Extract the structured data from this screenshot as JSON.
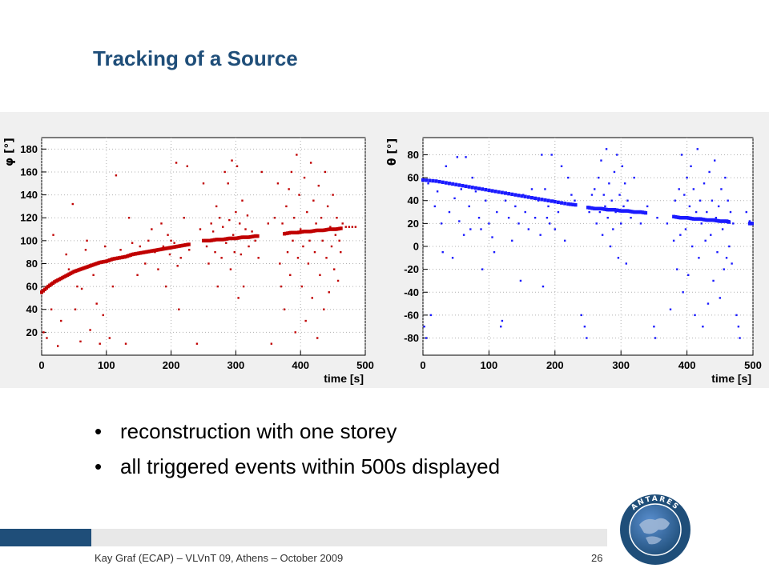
{
  "slide": {
    "title": "Tracking of a Source",
    "bullets": [
      "reconstruction with one storey",
      "all triggered events within 500s displayed"
    ],
    "footer": "Kay Graf (ECAP) – VLVnT 09, Athens – October 2009",
    "page_number": "26",
    "logo_text": "ANTARES",
    "colors": {
      "title": "#1f4e79",
      "footer_bar": "#1f4e79",
      "phi_series": "#c00000",
      "theta_series": "#1a1aff"
    }
  },
  "chart_data": [
    {
      "type": "scatter",
      "ylabel": "φ [°]",
      "xlabel": "time [s]",
      "xlim": [
        0,
        500
      ],
      "ylim": [
        0,
        190
      ],
      "xticks": [
        0,
        100,
        200,
        300,
        400,
        500
      ],
      "yticks": [
        20,
        40,
        60,
        80,
        100,
        120,
        140,
        160,
        180
      ],
      "grid": true,
      "color": "#c00000",
      "trend_segments": [
        {
          "x": [
            0,
            10,
            20,
            30,
            40,
            50,
            60,
            70,
            80,
            90,
            100,
            110,
            120,
            130,
            140,
            150,
            160,
            170,
            180,
            190,
            200,
            210,
            220,
            230
          ],
          "y": [
            55,
            60,
            64,
            67,
            70,
            73,
            75,
            77,
            79,
            81,
            82,
            84,
            85,
            86,
            88,
            89,
            90,
            91,
            92,
            93,
            94,
            95,
            96,
            97
          ]
        },
        {
          "x": [
            250,
            260,
            270,
            280,
            290,
            300,
            310,
            320,
            330,
            335
          ],
          "y": [
            100,
            100,
            101,
            101,
            102,
            102,
            103,
            103,
            104,
            104
          ]
        },
        {
          "x": [
            375,
            385,
            395,
            405,
            415,
            425,
            435,
            445,
            455,
            465
          ],
          "y": [
            106,
            107,
            107,
            108,
            108,
            109,
            109,
            110,
            110,
            111
          ]
        }
      ],
      "scatter_points": [
        [
          3,
          20
        ],
        [
          8,
          15
        ],
        [
          15,
          40
        ],
        [
          18,
          105
        ],
        [
          25,
          8
        ],
        [
          30,
          30
        ],
        [
          38,
          88
        ],
        [
          42,
          75
        ],
        [
          48,
          132
        ],
        [
          52,
          40
        ],
        [
          55,
          60
        ],
        [
          60,
          12
        ],
        [
          62,
          58
        ],
        [
          68,
          92
        ],
        [
          70,
          100
        ],
        [
          75,
          22
        ],
        [
          80,
          70
        ],
        [
          85,
          45
        ],
        [
          90,
          10
        ],
        [
          95,
          35
        ],
        [
          98,
          95
        ],
        [
          105,
          15
        ],
        [
          110,
          60
        ],
        [
          115,
          157
        ],
        [
          122,
          92
        ],
        [
          130,
          10
        ],
        [
          135,
          120
        ],
        [
          140,
          98
        ],
        [
          148,
          70
        ],
        [
          152,
          95
        ],
        [
          160,
          80
        ],
        [
          165,
          100
        ],
        [
          170,
          110
        ],
        [
          175,
          90
        ],
        [
          180,
          75
        ],
        [
          185,
          115
        ],
        [
          188,
          95
        ],
        [
          192,
          60
        ],
        [
          195,
          105
        ],
        [
          198,
          88
        ],
        [
          200,
          100
        ],
        [
          205,
          98
        ],
        [
          208,
          168
        ],
        [
          210,
          78
        ],
        [
          212,
          40
        ],
        [
          215,
          85
        ],
        [
          220,
          120
        ],
        [
          225,
          165
        ],
        [
          228,
          92
        ],
        [
          240,
          10
        ],
        [
          245,
          110
        ],
        [
          250,
          150
        ],
        [
          255,
          95
        ],
        [
          258,
          80
        ],
        [
          262,
          115
        ],
        [
          265,
          108
        ],
        [
          268,
          90
        ],
        [
          270,
          130
        ],
        [
          272,
          60
        ],
        [
          275,
          120
        ],
        [
          278,
          85
        ],
        [
          280,
          112
        ],
        [
          283,
          160
        ],
        [
          285,
          98
        ],
        [
          288,
          150
        ],
        [
          290,
          118
        ],
        [
          292,
          75
        ],
        [
          294,
          170
        ],
        [
          296,
          105
        ],
        [
          298,
          90
        ],
        [
          300,
          125
        ],
        [
          302,
          165
        ],
        [
          304,
          50
        ],
        [
          306,
          115
        ],
        [
          308,
          88
        ],
        [
          310,
          135
        ],
        [
          312,
          60
        ],
        [
          315,
          110
        ],
        [
          318,
          122
        ],
        [
          320,
          95
        ],
        [
          325,
          108
        ],
        [
          330,
          100
        ],
        [
          335,
          85
        ],
        [
          340,
          160
        ],
        [
          350,
          115
        ],
        [
          355,
          10
        ],
        [
          360,
          120
        ],
        [
          365,
          150
        ],
        [
          368,
          80
        ],
        [
          370,
          60
        ],
        [
          372,
          115
        ],
        [
          375,
          40
        ],
        [
          378,
          130
        ],
        [
          380,
          90
        ],
        [
          382,
          145
        ],
        [
          384,
          70
        ],
        [
          386,
          160
        ],
        [
          388,
          100
        ],
        [
          390,
          120
        ],
        [
          392,
          20
        ],
        [
          394,
          175
        ],
        [
          396,
          85
        ],
        [
          398,
          140
        ],
        [
          400,
          110
        ],
        [
          402,
          60
        ],
        [
          404,
          95
        ],
        [
          406,
          155
        ],
        [
          408,
          30
        ],
        [
          410,
          125
        ],
        [
          412,
          80
        ],
        [
          414,
          100
        ],
        [
          416,
          168
        ],
        [
          418,
          50
        ],
        [
          420,
          135
        ],
        [
          422,
          90
        ],
        [
          424,
          115
        ],
        [
          426,
          15
        ],
        [
          428,
          148
        ],
        [
          430,
          70
        ],
        [
          432,
          120
        ],
        [
          434,
          100
        ],
        [
          436,
          40
        ],
        [
          438,
          160
        ],
        [
          440,
          85
        ],
        [
          442,
          130
        ],
        [
          444,
          55
        ],
        [
          446,
          112
        ],
        [
          448,
          95
        ],
        [
          450,
          140
        ],
        [
          452,
          75
        ],
        [
          454,
          105
        ],
        [
          456,
          120
        ],
        [
          458,
          65
        ],
        [
          460,
          100
        ],
        [
          462,
          90
        ],
        [
          465,
          115
        ],
        [
          470,
          112
        ],
        [
          475,
          112
        ],
        [
          480,
          112
        ],
        [
          485,
          112
        ]
      ]
    },
    {
      "type": "scatter",
      "ylabel": "θ [°]",
      "xlabel": "time [s]",
      "xlim": [
        0,
        500
      ],
      "ylim": [
        -95,
        95
      ],
      "xticks": [
        0,
        100,
        200,
        300,
        400,
        500
      ],
      "yticks": [
        -80,
        -60,
        -40,
        -20,
        0,
        20,
        40,
        60,
        80
      ],
      "grid": true,
      "color": "#1a1aff",
      "trend_segments": [
        {
          "x": [
            0,
            20,
            40,
            60,
            80,
            100,
            120,
            140,
            160,
            180,
            200,
            220,
            235
          ],
          "y": [
            58,
            57,
            55,
            53,
            51,
            49,
            47,
            45,
            43,
            41,
            39,
            37,
            36
          ]
        },
        {
          "x": [
            250,
            260,
            270,
            280,
            290,
            300,
            310,
            320,
            330,
            340
          ],
          "y": [
            34,
            33,
            33,
            32,
            32,
            31,
            31,
            30,
            30,
            29
          ]
        },
        {
          "x": [
            380,
            390,
            400,
            410,
            420,
            430,
            440,
            450,
            460,
            465
          ],
          "y": [
            26,
            25,
            25,
            24,
            24,
            23,
            23,
            22,
            22,
            21
          ]
        },
        {
          "x": [
            495,
            500
          ],
          "y": [
            20,
            20
          ]
        }
      ],
      "scatter_points": [
        [
          2,
          -70
        ],
        [
          5,
          -80
        ],
        [
          8,
          55
        ],
        [
          12,
          -60
        ],
        [
          18,
          35
        ],
        [
          22,
          48
        ],
        [
          28,
          20
        ],
        [
          30,
          -5
        ],
        [
          35,
          70
        ],
        [
          40,
          30
        ],
        [
          45,
          -10
        ],
        [
          48,
          42
        ],
        [
          52,
          78
        ],
        [
          55,
          22
        ],
        [
          58,
          50
        ],
        [
          62,
          10
        ],
        [
          65,
          78
        ],
        [
          70,
          35
        ],
        [
          72,
          15
        ],
        [
          75,
          60
        ],
        [
          80,
          48
        ],
        [
          85,
          25
        ],
        [
          88,
          15
        ],
        [
          90,
          -20
        ],
        [
          95,
          40
        ],
        [
          100,
          20
        ],
        [
          105,
          8
        ],
        [
          108,
          -5
        ],
        [
          112,
          30
        ],
        [
          118,
          -70
        ],
        [
          120,
          -65
        ],
        [
          125,
          40
        ],
        [
          130,
          25
        ],
        [
          135,
          5
        ],
        [
          140,
          35
        ],
        [
          145,
          20
        ],
        [
          148,
          -30
        ],
        [
          152,
          45
        ],
        [
          155,
          30
        ],
        [
          160,
          15
        ],
        [
          165,
          50
        ],
        [
          170,
          25
        ],
        [
          175,
          40
        ],
        [
          178,
          10
        ],
        [
          180,
          80
        ],
        [
          182,
          -35
        ],
        [
          185,
          50
        ],
        [
          188,
          25
        ],
        [
          190,
          35
        ],
        [
          192,
          20
        ],
        [
          195,
          80
        ],
        [
          198,
          40
        ],
        [
          200,
          15
        ],
        [
          205,
          30
        ],
        [
          210,
          70
        ],
        [
          215,
          5
        ],
        [
          220,
          60
        ],
        [
          225,
          45
        ],
        [
          230,
          40
        ],
        [
          240,
          -60
        ],
        [
          245,
          -70
        ],
        [
          248,
          -80
        ],
        [
          252,
          30
        ],
        [
          256,
          45
        ],
        [
          260,
          50
        ],
        [
          263,
          20
        ],
        [
          266,
          60
        ],
        [
          268,
          30
        ],
        [
          270,
          75
        ],
        [
          272,
          10
        ],
        [
          274,
          45
        ],
        [
          276,
          35
        ],
        [
          278,
          85
        ],
        [
          280,
          25
        ],
        [
          282,
          55
        ],
        [
          284,
          0
        ],
        [
          286,
          40
        ],
        [
          288,
          15
        ],
        [
          290,
          65
        ],
        [
          292,
          30
        ],
        [
          294,
          80
        ],
        [
          296,
          -10
        ],
        [
          298,
          45
        ],
        [
          300,
          20
        ],
        [
          302,
          70
        ],
        [
          304,
          35
        ],
        [
          306,
          55
        ],
        [
          308,
          -15
        ],
        [
          310,
          40
        ],
        [
          315,
          25
        ],
        [
          320,
          60
        ],
        [
          325,
          30
        ],
        [
          330,
          20
        ],
        [
          340,
          35
        ],
        [
          350,
          -70
        ],
        [
          352,
          -80
        ],
        [
          355,
          25
        ],
        [
          370,
          20
        ],
        [
          375,
          -55
        ],
        [
          380,
          5
        ],
        [
          382,
          40
        ],
        [
          385,
          -20
        ],
        [
          388,
          50
        ],
        [
          390,
          10
        ],
        [
          392,
          80
        ],
        [
          394,
          -40
        ],
        [
          396,
          45
        ],
        [
          398,
          15
        ],
        [
          400,
          60
        ],
        [
          402,
          -25
        ],
        [
          404,
          35
        ],
        [
          406,
          70
        ],
        [
          408,
          0
        ],
        [
          410,
          50
        ],
        [
          412,
          -60
        ],
        [
          414,
          30
        ],
        [
          416,
          85
        ],
        [
          418,
          -10
        ],
        [
          420,
          40
        ],
        [
          422,
          20
        ],
        [
          424,
          -70
        ],
        [
          426,
          55
        ],
        [
          428,
          5
        ],
        [
          430,
          30
        ],
        [
          432,
          -50
        ],
        [
          434,
          65
        ],
        [
          436,
          10
        ],
        [
          438,
          40
        ],
        [
          440,
          -30
        ],
        [
          442,
          75
        ],
        [
          444,
          25
        ],
        [
          446,
          -5
        ],
        [
          448,
          35
        ],
        [
          450,
          -45
        ],
        [
          452,
          50
        ],
        [
          454,
          15
        ],
        [
          456,
          -20
        ],
        [
          458,
          60
        ],
        [
          460,
          -10
        ],
        [
          462,
          40
        ],
        [
          464,
          0
        ],
        [
          466,
          30
        ],
        [
          468,
          -15
        ],
        [
          470,
          20
        ],
        [
          475,
          -60
        ],
        [
          478,
          -70
        ],
        [
          480,
          -80
        ],
        [
          490,
          30
        ],
        [
          495,
          22
        ]
      ]
    }
  ]
}
